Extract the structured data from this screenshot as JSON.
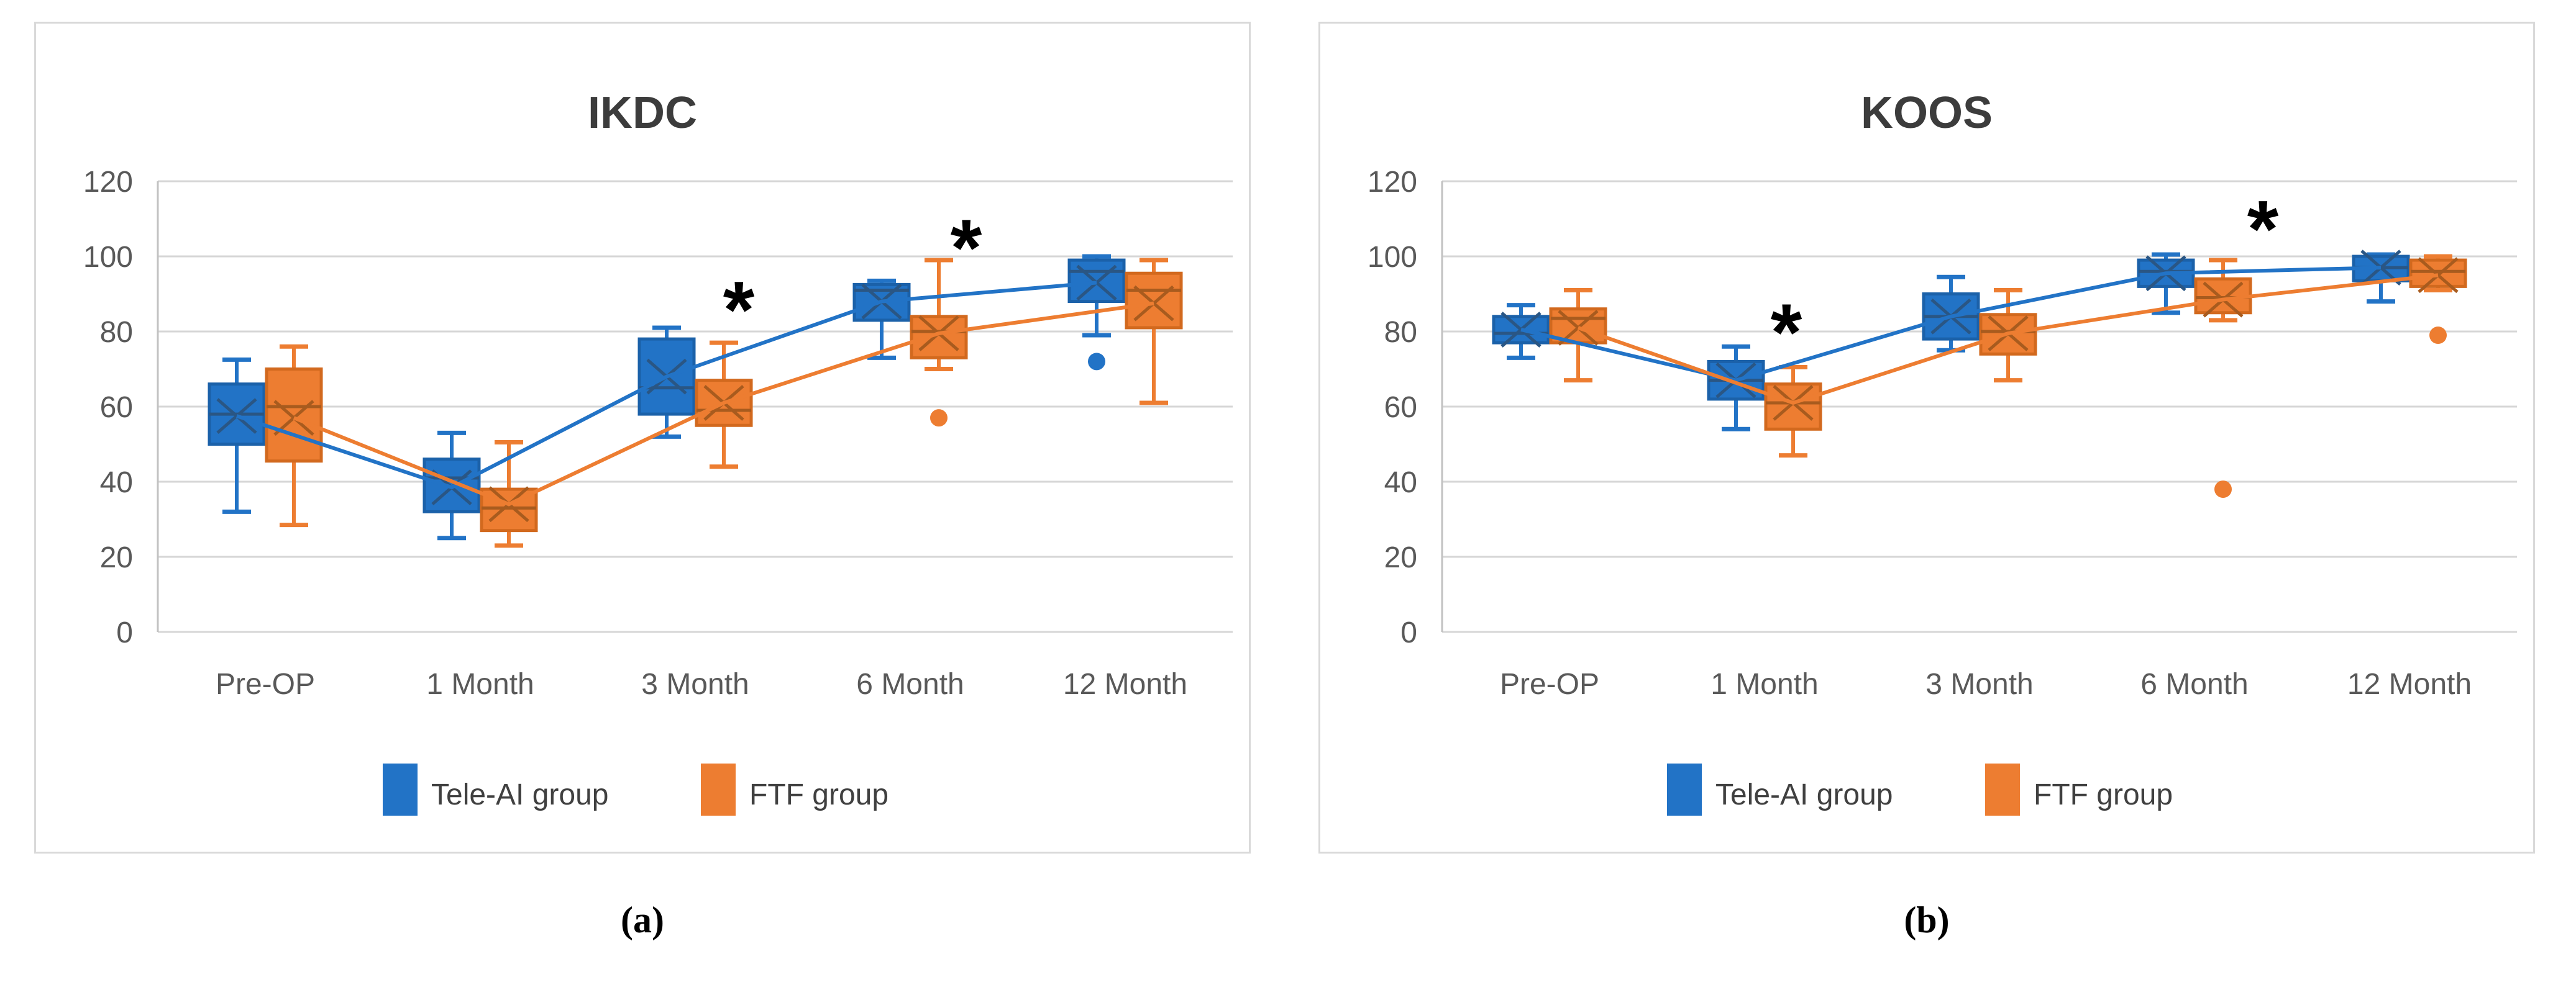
{
  "figure": {
    "panels": [
      {
        "id": "a",
        "caption": "(a)"
      },
      {
        "id": "b",
        "caption": "(b)"
      }
    ]
  },
  "chart_data": [
    {
      "type": "boxplot",
      "title": "IKDC",
      "categories": [
        "Pre-OP",
        "1 Month",
        "3 Month",
        "6 Month",
        "12 Month"
      ],
      "y_axis": {
        "min": 0,
        "max": 120,
        "step": 20,
        "tick_labels": [
          "0",
          "20",
          "40",
          "60",
          "80",
          "100",
          "120"
        ],
        "ylim": [
          0,
          120
        ]
      },
      "grid": true,
      "legend_position": "bottom",
      "series": [
        {
          "name": "Tele-AI group",
          "color": "#2273C6",
          "stroke": "#1B61A9",
          "detail": "#2A5684",
          "boxes": [
            {
              "category": "Pre-OP",
              "min": 32,
              "q1": 50,
              "median": 58,
              "q3": 66,
              "max": 72.5,
              "mean": 57.5,
              "outliers": []
            },
            {
              "category": "1 Month",
              "min": 25,
              "q1": 32,
              "median": 41,
              "q3": 46,
              "max": 53,
              "mean": 38.5,
              "outliers": []
            },
            {
              "category": "3 Month",
              "min": 52,
              "q1": 58,
              "median": 65,
              "q3": 78,
              "max": 81,
              "mean": 68,
              "outliers": []
            },
            {
              "category": "6 Month",
              "min": 73,
              "q1": 83,
              "median": 91,
              "q3": 92.5,
              "max": 93.5,
              "mean": 88,
              "outliers": []
            },
            {
              "category": "12 Month",
              "min": 79,
              "q1": 88,
              "median": 96,
              "q3": 99,
              "max": 100,
              "mean": 93,
              "outliers": [
                72
              ]
            }
          ],
          "mean_line": [
            57.5,
            38.5,
            68,
            88,
            93
          ]
        },
        {
          "name": "FTF group",
          "color": "#ED7D31",
          "stroke": "#D2691E",
          "detail": "#A85B1E",
          "boxes": [
            {
              "category": "Pre-OP",
              "min": 28.5,
              "q1": 45.5,
              "median": 60,
              "q3": 70,
              "max": 76,
              "mean": 57,
              "outliers": []
            },
            {
              "category": "1 Month",
              "min": 23,
              "q1": 27,
              "median": 33,
              "q3": 38,
              "max": 50.5,
              "mean": 34,
              "outliers": []
            },
            {
              "category": "3 Month",
              "min": 44,
              "q1": 55,
              "median": 59,
              "q3": 67,
              "max": 77,
              "mean": 61,
              "outliers": []
            },
            {
              "category": "6 Month",
              "min": 70,
              "q1": 73,
              "median": 80,
              "q3": 84,
              "max": 99,
              "mean": 79.5,
              "outliers": [
                57
              ]
            },
            {
              "category": "12 Month",
              "min": 61,
              "q1": 81,
              "median": 91,
              "q3": 95.5,
              "max": 99,
              "mean": 87.5,
              "outliers": []
            }
          ],
          "mean_line": [
            57,
            34,
            61,
            79.5,
            87.5
          ]
        }
      ],
      "annotations": [
        {
          "symbol": "*",
          "category": "3 Month",
          "value": 86,
          "dx": 70
        },
        {
          "symbol": "*",
          "category": "6 Month",
          "value": 102.5,
          "dx": 90
        }
      ]
    },
    {
      "type": "boxplot",
      "title": "KOOS",
      "categories": [
        "Pre-OP",
        "1 Month",
        "3 Month",
        "6 Month",
        "12 Month"
      ],
      "y_axis": {
        "min": 0,
        "max": 120,
        "step": 20,
        "tick_labels": [
          "0",
          "20",
          "40",
          "60",
          "80",
          "100",
          "120"
        ],
        "ylim": [
          0,
          120
        ]
      },
      "grid": true,
      "legend_position": "bottom",
      "series": [
        {
          "name": "Tele-AI group",
          "color": "#2273C6",
          "stroke": "#1B61A9",
          "detail": "#2A5684",
          "boxes": [
            {
              "category": "Pre-OP",
              "min": 73,
              "q1": 77,
              "median": 79.5,
              "q3": 84,
              "max": 87,
              "mean": 80.5,
              "outliers": []
            },
            {
              "category": "1 Month",
              "min": 54,
              "q1": 62,
              "median": 67,
              "q3": 72,
              "max": 76,
              "mean": 67,
              "outliers": []
            },
            {
              "category": "3 Month",
              "min": 75,
              "q1": 78,
              "median": 84,
              "q3": 90,
              "max": 94.5,
              "mean": 84,
              "outliers": []
            },
            {
              "category": "6 Month",
              "min": 85,
              "q1": 92,
              "median": 96,
              "q3": 99,
              "max": 100.5,
              "mean": 95.5,
              "outliers": []
            },
            {
              "category": "12 Month",
              "min": 88,
              "q1": 93.5,
              "median": 97,
              "q3": 100,
              "max": 100.5,
              "mean": 97,
              "outliers": []
            }
          ],
          "mean_line": [
            80.5,
            67,
            84,
            95.5,
            97
          ]
        },
        {
          "name": "FTF group",
          "color": "#ED7D31",
          "stroke": "#D2691E",
          "detail": "#A85B1E",
          "boxes": [
            {
              "category": "Pre-OP",
              "min": 67,
              "q1": 77,
              "median": 83.5,
              "q3": 86,
              "max": 91,
              "mean": 81,
              "outliers": []
            },
            {
              "category": "1 Month",
              "min": 47,
              "q1": 54,
              "median": 61,
              "q3": 66,
              "max": 70.5,
              "mean": 61,
              "outliers": []
            },
            {
              "category": "3 Month",
              "min": 67,
              "q1": 74,
              "median": 80,
              "q3": 84.5,
              "max": 91,
              "mean": 79.5,
              "outliers": []
            },
            {
              "category": "6 Month",
              "min": 83,
              "q1": 85,
              "median": 89,
              "q3": 94,
              "max": 99,
              "mean": 88.5,
              "outliers": [
                38
              ]
            },
            {
              "category": "12 Month",
              "min": 91,
              "q1": 92,
              "median": 96,
              "q3": 99,
              "max": 100,
              "mean": 95,
              "outliers": [
                79
              ]
            }
          ],
          "mean_line": [
            81,
            61,
            79.5,
            88.5,
            95
          ]
        }
      ],
      "annotations": [
        {
          "symbol": "*",
          "category": "1 Month",
          "value": 80,
          "dx": 35
        },
        {
          "symbol": "*",
          "category": "6 Month",
          "value": 107.5,
          "dx": 110
        }
      ]
    }
  ],
  "style": {
    "gridline_color": "#D6D6D6",
    "axis_color": "#C2C2C2",
    "annotation_color": "#000000"
  }
}
